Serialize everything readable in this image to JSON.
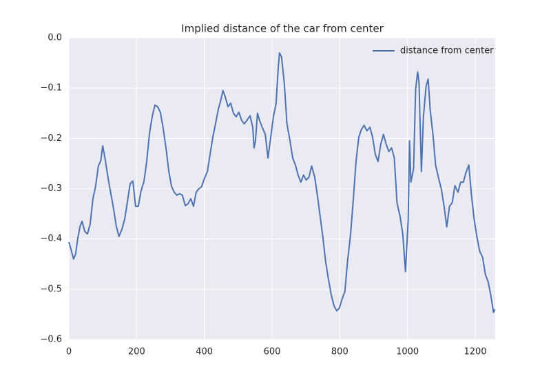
{
  "chart_data": {
    "type": "line",
    "title": "Implied distance of the car from center",
    "series": [
      {
        "name": "distance from center",
        "color": "#4c72b0",
        "x": [
          0,
          6,
          14,
          20,
          26,
          33,
          39,
          47,
          55,
          63,
          71,
          79,
          87,
          94,
          100,
          108,
          116,
          124,
          132,
          140,
          148,
          157,
          165,
          173,
          181,
          189,
          197,
          205,
          213,
          222,
          230,
          238,
          246,
          254,
          262,
          270,
          278,
          287,
          295,
          303,
          311,
          319,
          327,
          335,
          344,
          352,
          360,
          368,
          376,
          384,
          392,
          400,
          409,
          417,
          425,
          433,
          441,
          449,
          455,
          461,
          470,
          478,
          486,
          494,
          502,
          510,
          518,
          526,
          535,
          543,
          547,
          551,
          557,
          563,
          571,
          580,
          588,
          596,
          604,
          612,
          618,
          622,
          628,
          636,
          644,
          653,
          661,
          669,
          677,
          685,
          693,
          701,
          709,
          717,
          726,
          734,
          742,
          750,
          758,
          766,
          775,
          783,
          791,
          799,
          807,
          815,
          823,
          832,
          840,
          848,
          856,
          864,
          872,
          880,
          889,
          897,
          905,
          913,
          921,
          929,
          937,
          945,
          953,
          961,
          969,
          978,
          986,
          994,
          1002,
          1006,
          1010,
          1018,
          1024,
          1030,
          1034,
          1041,
          1047,
          1055,
          1061,
          1067,
          1075,
          1083,
          1092,
          1100,
          1108,
          1116,
          1124,
          1132,
          1140,
          1149,
          1157,
          1165,
          1173,
          1181,
          1189,
          1197,
          1205,
          1213,
          1222,
          1230,
          1238,
          1246,
          1254,
          1258
        ],
        "values": [
          -0.406,
          -0.42,
          -0.44,
          -0.43,
          -0.4,
          -0.375,
          -0.365,
          -0.385,
          -0.39,
          -0.37,
          -0.32,
          -0.295,
          -0.255,
          -0.245,
          -0.215,
          -0.245,
          -0.28,
          -0.31,
          -0.34,
          -0.375,
          -0.395,
          -0.38,
          -0.36,
          -0.325,
          -0.29,
          -0.285,
          -0.335,
          -0.335,
          -0.305,
          -0.285,
          -0.245,
          -0.19,
          -0.157,
          -0.134,
          -0.137,
          -0.148,
          -0.178,
          -0.22,
          -0.265,
          -0.295,
          -0.307,
          -0.313,
          -0.31,
          -0.313,
          -0.334,
          -0.33,
          -0.32,
          -0.335,
          -0.307,
          -0.3,
          -0.296,
          -0.28,
          -0.266,
          -0.232,
          -0.198,
          -0.171,
          -0.143,
          -0.123,
          -0.105,
          -0.116,
          -0.137,
          -0.13,
          -0.15,
          -0.157,
          -0.148,
          -0.164,
          -0.171,
          -0.164,
          -0.155,
          -0.178,
          -0.219,
          -0.205,
          -0.15,
          -0.164,
          -0.178,
          -0.192,
          -0.239,
          -0.198,
          -0.157,
          -0.13,
          -0.062,
          -0.03,
          -0.038,
          -0.089,
          -0.171,
          -0.205,
          -0.239,
          -0.253,
          -0.273,
          -0.287,
          -0.273,
          -0.283,
          -0.277,
          -0.255,
          -0.277,
          -0.314,
          -0.355,
          -0.396,
          -0.444,
          -0.478,
          -0.512,
          -0.533,
          -0.543,
          -0.537,
          -0.519,
          -0.505,
          -0.444,
          -0.39,
          -0.321,
          -0.246,
          -0.198,
          -0.182,
          -0.174,
          -0.185,
          -0.178,
          -0.198,
          -0.232,
          -0.246,
          -0.212,
          -0.192,
          -0.212,
          -0.226,
          -0.219,
          -0.239,
          -0.328,
          -0.355,
          -0.39,
          -0.465,
          -0.362,
          -0.205,
          -0.287,
          -0.26,
          -0.102,
          -0.068,
          -0.089,
          -0.266,
          -0.157,
          -0.096,
          -0.082,
          -0.144,
          -0.191,
          -0.253,
          -0.28,
          -0.301,
          -0.335,
          -0.376,
          -0.335,
          -0.328,
          -0.294,
          -0.307,
          -0.287,
          -0.287,
          -0.267,
          -0.253,
          -0.314,
          -0.362,
          -0.396,
          -0.424,
          -0.437,
          -0.471,
          -0.485,
          -0.512,
          -0.546,
          -0.54
        ]
      }
    ],
    "xlim": [
      0,
      1259
    ],
    "xticks": [
      0,
      200,
      400,
      600,
      800,
      1000,
      1200
    ],
    "ylim": [
      -0.6,
      0
    ],
    "yticks": [
      {
        "value": 0,
        "label": "0.0"
      },
      {
        "value": -0.1,
        "label": "−0.1"
      },
      {
        "value": -0.2,
        "label": "−0.2"
      },
      {
        "value": -0.3,
        "label": "−0.3"
      },
      {
        "value": -0.4,
        "label": "−0.4"
      },
      {
        "value": -0.5,
        "label": "−0.5"
      },
      {
        "value": -0.6,
        "label": "−0.6"
      }
    ],
    "grid": true,
    "legend": "upper-right"
  }
}
